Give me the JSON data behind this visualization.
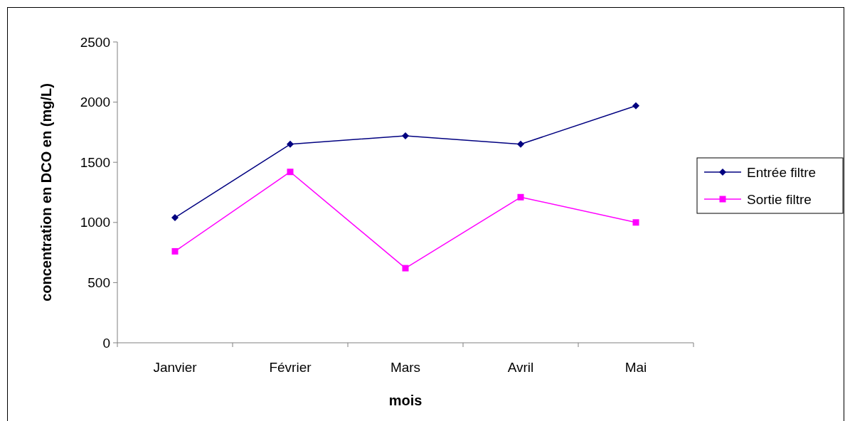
{
  "chart_data": {
    "type": "line",
    "xlabel": "mois",
    "ylabel": "concentration en DCO en (mg/L)",
    "categories": [
      "Janvier",
      "Février",
      "Mars",
      "Avril",
      "Mai"
    ],
    "series": [
      {
        "name": "Entrée filtre",
        "color": "#000080",
        "marker": "diamond",
        "values": [
          1040,
          1650,
          1720,
          1650,
          1970
        ]
      },
      {
        "name": "Sortie filtre",
        "color": "#ff00ff",
        "marker": "square",
        "values": [
          760,
          1420,
          620,
          1210,
          1000
        ]
      }
    ],
    "ylim": [
      0,
      2500
    ],
    "yticks": [
      0,
      500,
      1000,
      1500,
      2000,
      2500
    ],
    "grid": false,
    "legend": "right",
    "line_style": "solid"
  }
}
